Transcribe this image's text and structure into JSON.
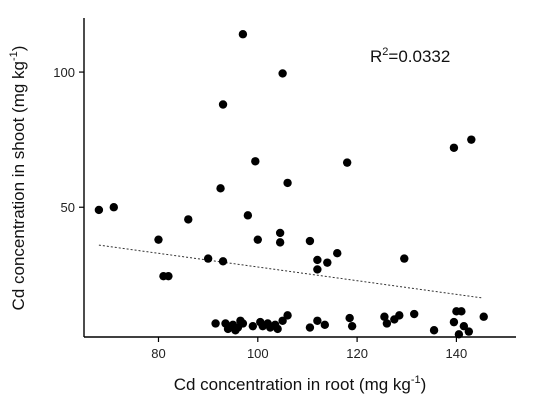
{
  "chart_data": {
    "type": "scatter",
    "title": "",
    "xlabel": {
      "main": "Cd concentration in root (mg kg",
      "sup": "-1",
      "close": ")"
    },
    "ylabel": {
      "main": "Cd concentration in shoot (mg kg",
      "sup": "-1",
      "close": ")"
    },
    "xlim": [
      65,
      152
    ],
    "ylim": [
      2,
      120
    ],
    "xticks": [
      80,
      100,
      120,
      140
    ],
    "yticks": [
      50,
      100
    ],
    "grid": false,
    "legend": "none",
    "annotation": {
      "base": "R",
      "sup": "2",
      "rest": "=0.0332"
    },
    "trendline": {
      "x": [
        68,
        145
      ],
      "y": [
        36,
        16.5
      ],
      "style": "dotted"
    },
    "points": [
      {
        "x": 97,
        "y": 114
      },
      {
        "x": 105,
        "y": 99.5
      },
      {
        "x": 93,
        "y": 88
      },
      {
        "x": 143,
        "y": 75
      },
      {
        "x": 139.5,
        "y": 72
      },
      {
        "x": 99.5,
        "y": 67
      },
      {
        "x": 118,
        "y": 66.5
      },
      {
        "x": 106,
        "y": 59
      },
      {
        "x": 92.5,
        "y": 57
      },
      {
        "x": 68,
        "y": 49
      },
      {
        "x": 71,
        "y": 50
      },
      {
        "x": 98,
        "y": 47
      },
      {
        "x": 86,
        "y": 45.5
      },
      {
        "x": 104.5,
        "y": 40.5
      },
      {
        "x": 80,
        "y": 38
      },
      {
        "x": 100,
        "y": 38
      },
      {
        "x": 104.5,
        "y": 37
      },
      {
        "x": 110.5,
        "y": 37.5
      },
      {
        "x": 116,
        "y": 33
      },
      {
        "x": 90,
        "y": 31
      },
      {
        "x": 112,
        "y": 30.5
      },
      {
        "x": 129.5,
        "y": 31
      },
      {
        "x": 93,
        "y": 30
      },
      {
        "x": 114,
        "y": 29.5
      },
      {
        "x": 112,
        "y": 27
      },
      {
        "x": 81,
        "y": 24.5
      },
      {
        "x": 82,
        "y": 24.5
      },
      {
        "x": 91.5,
        "y": 7
      },
      {
        "x": 93.5,
        "y": 7
      },
      {
        "x": 94,
        "y": 5
      },
      {
        "x": 95,
        "y": 6.5
      },
      {
        "x": 95.5,
        "y": 4.5
      },
      {
        "x": 96,
        "y": 5.5
      },
      {
        "x": 96.5,
        "y": 8
      },
      {
        "x": 97,
        "y": 7
      },
      {
        "x": 99,
        "y": 6
      },
      {
        "x": 100.5,
        "y": 7.5
      },
      {
        "x": 101,
        "y": 6
      },
      {
        "x": 102,
        "y": 7
      },
      {
        "x": 102.5,
        "y": 5.5
      },
      {
        "x": 103.5,
        "y": 6.5
      },
      {
        "x": 104,
        "y": 5
      },
      {
        "x": 105,
        "y": 8
      },
      {
        "x": 106,
        "y": 10
      },
      {
        "x": 110.5,
        "y": 5.5
      },
      {
        "x": 112,
        "y": 8
      },
      {
        "x": 113.5,
        "y": 6.5
      },
      {
        "x": 118.5,
        "y": 9
      },
      {
        "x": 119,
        "y": 6
      },
      {
        "x": 125.5,
        "y": 9.5
      },
      {
        "x": 126,
        "y": 7
      },
      {
        "x": 127.5,
        "y": 8.5
      },
      {
        "x": 128.5,
        "y": 10
      },
      {
        "x": 131.5,
        "y": 10.5
      },
      {
        "x": 135.5,
        "y": 4.5
      },
      {
        "x": 139.5,
        "y": 7.5
      },
      {
        "x": 140,
        "y": 11.5
      },
      {
        "x": 141,
        "y": 11.5
      },
      {
        "x": 141.5,
        "y": 6
      },
      {
        "x": 142.5,
        "y": 4
      },
      {
        "x": 145.5,
        "y": 9.5
      },
      {
        "x": 140.5,
        "y": 3
      }
    ]
  }
}
